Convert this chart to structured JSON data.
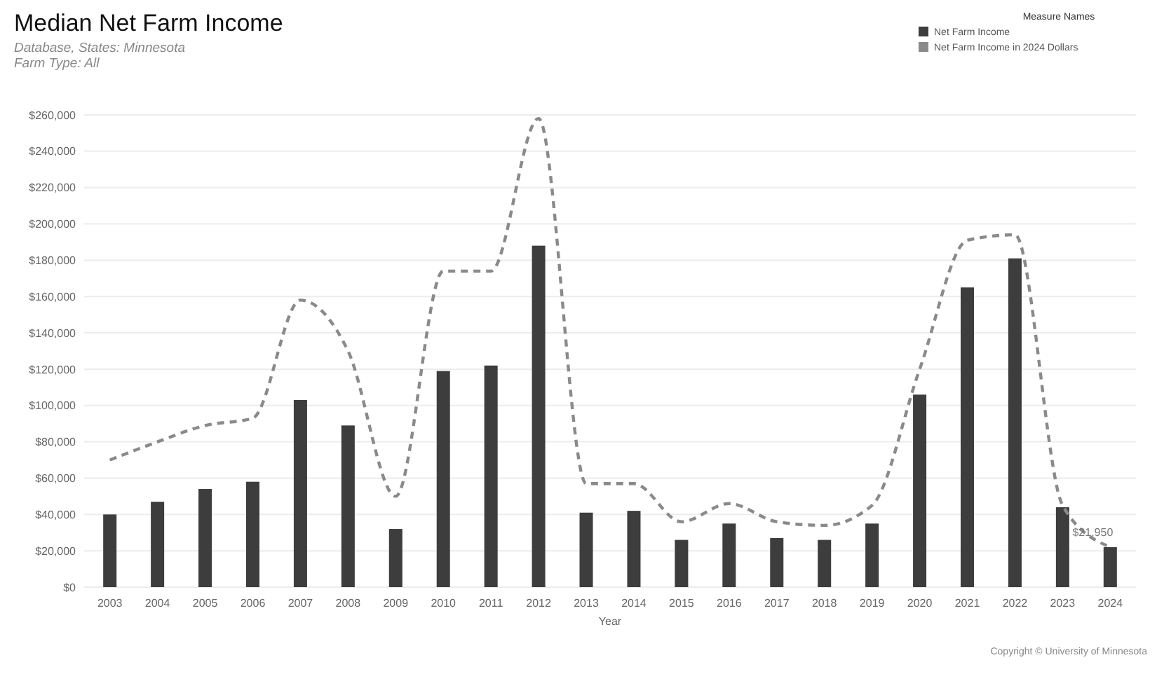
{
  "chart_data": {
    "type": "bar",
    "title": "Median Net Farm Income",
    "subtitle": "Database, States: Minnesota\nFarm Type: All",
    "xlabel": "Year",
    "legend_title": "Measure Names",
    "categories": [
      "2003",
      "2004",
      "2005",
      "2006",
      "2007",
      "2008",
      "2009",
      "2010",
      "2011",
      "2012",
      "2013",
      "2014",
      "2015",
      "2016",
      "2017",
      "2018",
      "2019",
      "2020",
      "2021",
      "2022",
      "2023",
      "2024"
    ],
    "series": [
      {
        "name": "Net Farm Income",
        "color": "#3d3d3d",
        "values": [
          40000,
          47000,
          54000,
          58000,
          103000,
          89000,
          32000,
          119000,
          122000,
          188000,
          41000,
          42000,
          26000,
          35000,
          27000,
          26000,
          35000,
          106000,
          165000,
          181000,
          44000,
          22000
        ]
      },
      {
        "name": "Net Farm Income in 2024 Dollars",
        "type": "line",
        "color": "#8a8a8a",
        "line_style": "dashed",
        "values": [
          70000,
          80000,
          89000,
          93000,
          158000,
          130000,
          50000,
          174000,
          174000,
          258000,
          57000,
          57000,
          36000,
          46000,
          36000,
          34000,
          45000,
          120000,
          191000,
          194000,
          45000,
          22000
        ]
      }
    ],
    "ylim": [
      0,
      260000
    ],
    "yticks": [
      {
        "value": 0,
        "label": "$0"
      },
      {
        "value": 20000,
        "label": "$20,000"
      },
      {
        "value": 40000,
        "label": "$40,000"
      },
      {
        "value": 60000,
        "label": "$60,000"
      },
      {
        "value": 80000,
        "label": "$80,000"
      },
      {
        "value": 100000,
        "label": "$100,000"
      },
      {
        "value": 120000,
        "label": "$120,000"
      },
      {
        "value": 140000,
        "label": "$140,000"
      },
      {
        "value": 160000,
        "label": "$160,000"
      },
      {
        "value": 180000,
        "label": "$180,000"
      },
      {
        "value": 200000,
        "label": "$200,000"
      },
      {
        "value": 220000,
        "label": "$220,000"
      },
      {
        "value": 240000,
        "label": "$240,000"
      },
      {
        "value": 260000,
        "label": "$260,000"
      }
    ],
    "grid": "y",
    "legend": "top right",
    "annotations": [
      {
        "text": "$21,950",
        "x": "2024",
        "y": 22000
      },
      "Copyright © University of Minnesota"
    ]
  }
}
